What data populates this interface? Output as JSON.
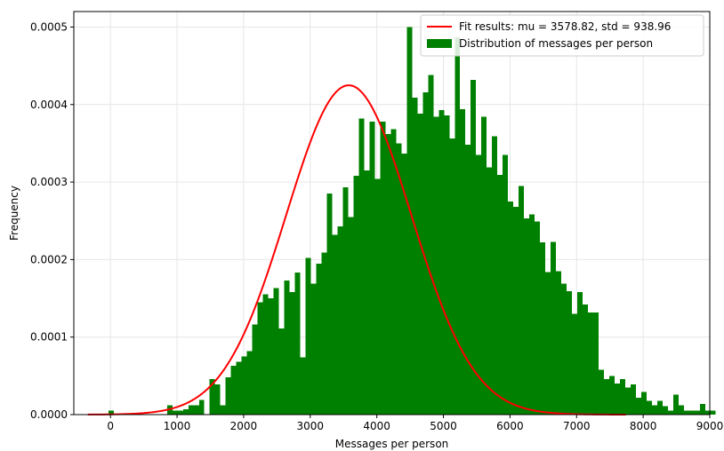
{
  "chart_data": {
    "type": "bar",
    "title": "",
    "xlabel": "Messages per person",
    "ylabel": "Frequency",
    "xlim": [
      -550,
      9000
    ],
    "ylim": [
      0,
      0.00052
    ],
    "xticks": [
      0,
      1000,
      2000,
      3000,
      4000,
      5000,
      6000,
      7000,
      8000,
      9000
    ],
    "xtick_labels": [
      "0",
      "1000",
      "2000",
      "3000",
      "4000",
      "5000",
      "6000",
      "7000",
      "8000",
      "9000"
    ],
    "yticks": [
      0.0,
      0.0001,
      0.0002,
      0.0003,
      0.0004,
      0.0005
    ],
    "ytick_labels": [
      "0.0000",
      "0.0001",
      "0.0002",
      "0.0003",
      "0.0004",
      "0.0005"
    ],
    "grid": true,
    "legend_position": "top-right",
    "bin_start": -350,
    "bin_width": 80,
    "histogram": {
      "name": "Distribution of messages per person",
      "color": "#008000",
      "values": [
        0,
        0,
        0,
        0,
        5e-06,
        0,
        0,
        0,
        0,
        0,
        0,
        0,
        0,
        0,
        0,
        1.2e-05,
        5e-06,
        5e-06,
        7e-06,
        1.2e-05,
        1.2e-05,
        1.9e-05,
        0,
        4.6e-05,
        3.9e-05,
        1.2e-05,
        4.8e-05,
        6.3e-05,
        6.8e-05,
        7.5e-05,
        8.2e-05,
        0.000116,
        0.000145,
        0.000155,
        0.00015,
        0.000163,
        0.000111,
        0.000173,
        0.000158,
        0.000183,
        7.4e-05,
        0.000202,
        0.000169,
        0.000195,
        0.000209,
        0.000285,
        0.000232,
        0.000243,
        0.000293,
        0.000255,
        0.000308,
        0.000382,
        0.000315,
        0.000378,
        0.000304,
        0.000378,
        0.000362,
        0.000368,
        0.00035,
        0.000337,
        0.0005,
        0.000409,
        0.000388,
        0.000416,
        0.000438,
        0.000384,
        0.000393,
        0.000386,
        0.000356,
        0.000487,
        0.000394,
        0.000348,
        0.000432,
        0.000335,
        0.000384,
        0.000319,
        0.000359,
        0.000309,
        0.000335,
        0.000275,
        0.000268,
        0.000295,
        0.000253,
        0.000258,
        0.000249,
        0.000222,
        0.000184,
        0.000223,
        0.000185,
        0.000169,
        0.000159,
        0.00013,
        0.000158,
        0.000142,
        0.000132,
        0.000132,
        5.8e-05,
        4.6e-05,
        5e-05,
        4e-05,
        4.6e-05,
        3.5e-05,
        3.9e-05,
        2.2e-05,
        2.9e-05,
        1.8e-05,
        1.2e-05,
        1.8e-05,
        1.1e-05,
        5e-06,
        2.6e-05,
        1.2e-05,
        5e-06,
        5e-06,
        5e-06,
        1.4e-05,
        5e-06,
        5e-06,
        0,
        0,
        5e-06,
        0,
        0,
        0,
        0,
        0,
        0,
        0,
        0,
        0,
        5e-06
      ]
    },
    "fit": {
      "name": "Fit results: mu = 3578.82,  std = 938.96",
      "color": "#ff0000",
      "mu": 3578.82,
      "std": 938.96,
      "x_range": [
        -340,
        7740
      ]
    }
  }
}
